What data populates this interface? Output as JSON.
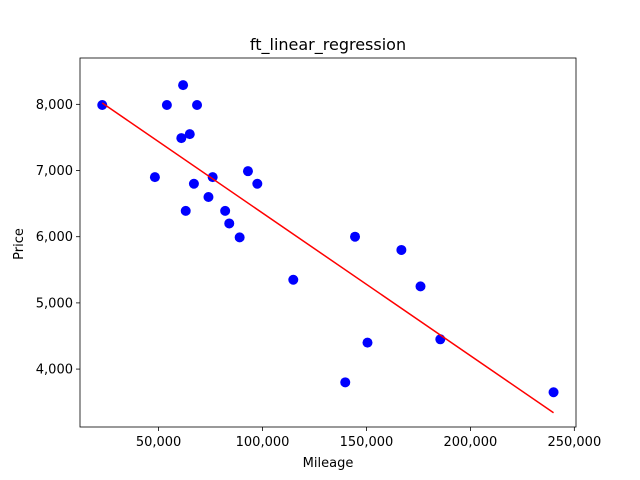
{
  "chart_data": {
    "type": "scatter",
    "title": "ft_linear_regression",
    "xlabel": "Mileage",
    "ylabel": "Price",
    "xlim": [
      12200,
      250800
    ],
    "ylim": [
      3125,
      8700
    ],
    "xticks": [
      50000,
      100000,
      150000,
      200000,
      250000
    ],
    "xtick_labels": [
      "50,000",
      "100,000",
      "150,000",
      "200,000",
      "250,000"
    ],
    "yticks": [
      4000,
      5000,
      6000,
      7000,
      8000
    ],
    "ytick_labels": [
      "4,000",
      "5,000",
      "6,000",
      "7,000",
      "8,000"
    ],
    "grid": false,
    "series": [
      {
        "type": "scatter",
        "color": "#0000ff",
        "points": [
          [
            22899,
            7990
          ],
          [
            48235,
            6900
          ],
          [
            54000,
            7990
          ],
          [
            60949,
            7490
          ],
          [
            61789,
            8290
          ],
          [
            63060,
            6390
          ],
          [
            65000,
            7550
          ],
          [
            67000,
            6800
          ],
          [
            68500,
            7990
          ],
          [
            74000,
            6600
          ],
          [
            76025,
            6900
          ],
          [
            82029,
            6390
          ],
          [
            84000,
            6200
          ],
          [
            89000,
            5990
          ],
          [
            93000,
            6990
          ],
          [
            97500,
            6800
          ],
          [
            114800,
            5350
          ],
          [
            139800,
            3800
          ],
          [
            144500,
            6000
          ],
          [
            150500,
            4400
          ],
          [
            166800,
            5800
          ],
          [
            176000,
            5250
          ],
          [
            185530,
            4450
          ],
          [
            240000,
            3650
          ]
        ]
      },
      {
        "type": "line",
        "color": "#ff0000",
        "points": [
          [
            22899,
            8020
          ],
          [
            240000,
            3340
          ]
        ]
      }
    ]
  }
}
